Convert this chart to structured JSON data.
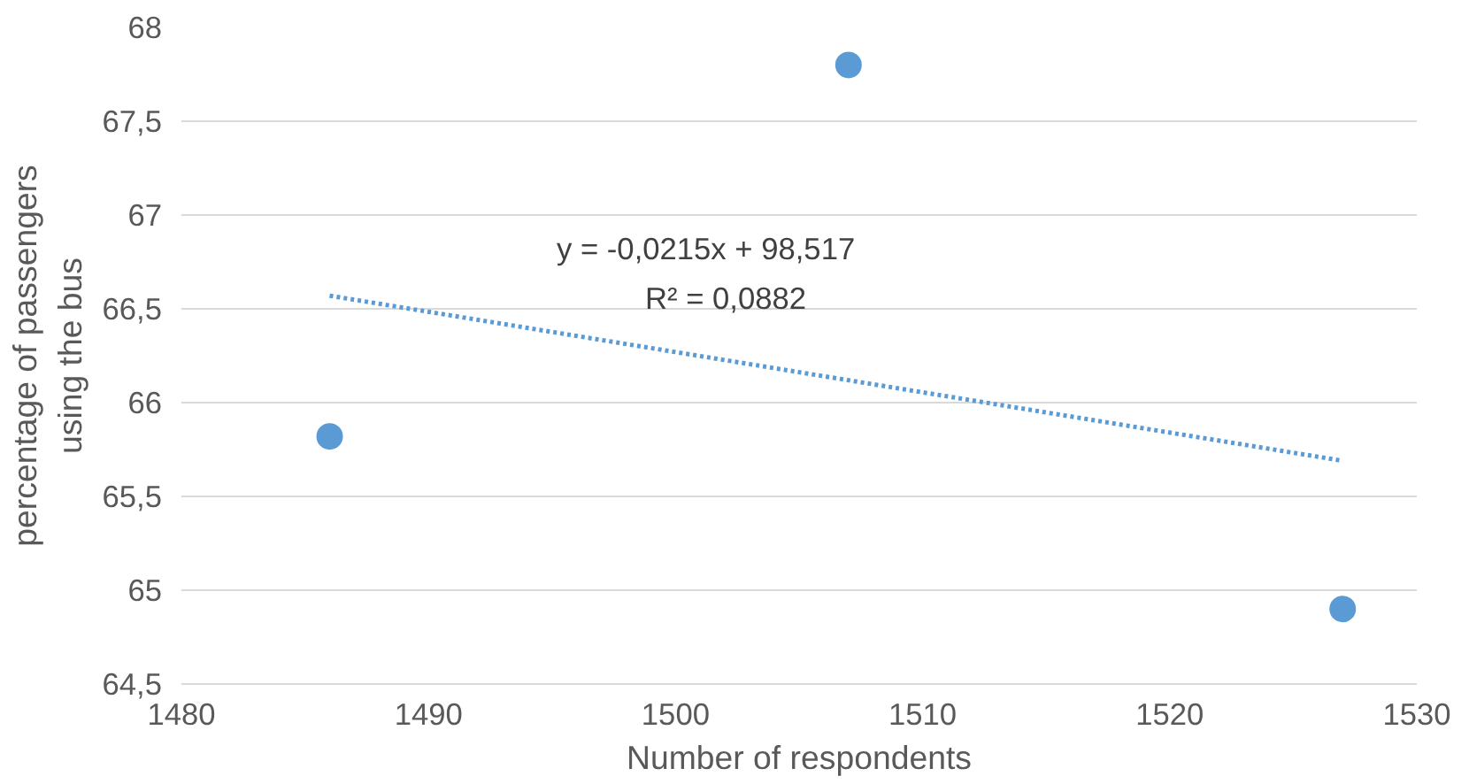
{
  "chart_data": {
    "type": "scatter",
    "xlabel": "Number of respondents",
    "ylabel": "percentage of passengers using the bus",
    "xlim": [
      1480,
      1530
    ],
    "xticks": [
      1480,
      1490,
      1500,
      1510,
      1520,
      1530
    ],
    "ylim": [
      64.5,
      68
    ],
    "yticks": [
      {
        "value": 64.5,
        "label": "64,5"
      },
      {
        "value": 65,
        "label": "65"
      },
      {
        "value": 65.5,
        "label": "65,5"
      },
      {
        "value": 66,
        "label": "66"
      },
      {
        "value": 66.5,
        "label": "66,5"
      },
      {
        "value": 67,
        "label": "67"
      },
      {
        "value": 67.5,
        "label": "67,5"
      },
      {
        "value": 68,
        "label": "68"
      }
    ],
    "grid": "y",
    "marker": "circle",
    "series": [
      {
        "color": "#5b9bd5",
        "x": [
          1486,
          1507,
          1527
        ],
        "values": [
          65.82,
          67.8,
          64.9
        ]
      },
      {
        "type": "line",
        "color": "#5b9bd5",
        "x": [
          1486,
          1527
        ],
        "values": [
          66.57,
          65.69
        ],
        "marker": "none",
        "line_style": "dotted"
      }
    ],
    "annotations": [
      "y = -0,0215x + 98,517",
      "R² = 0,0882"
    ]
  }
}
